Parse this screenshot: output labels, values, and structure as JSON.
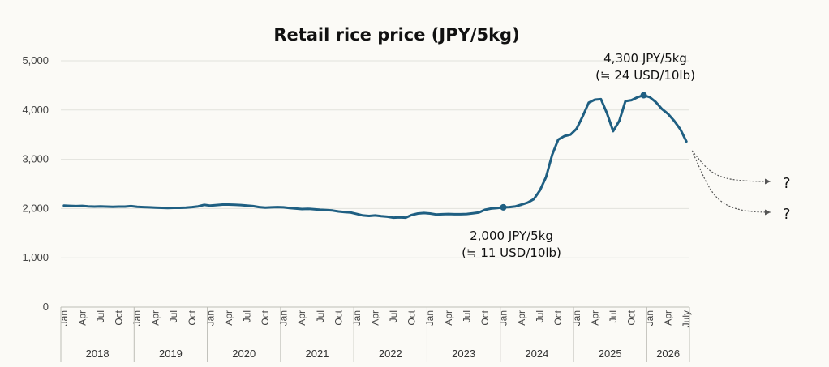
{
  "chart_data": {
    "type": "line",
    "title": "Retail rice price (JPY/5kg)",
    "xlabel": "",
    "ylabel": "",
    "ylim": [
      0,
      5000
    ],
    "y_ticks": [
      "0",
      "1,000",
      "2,000",
      "3,000",
      "4,000",
      "5,000"
    ],
    "x_start": "2018-01",
    "x_end": "2026-07",
    "month_labels": [
      "Jan",
      "Apr",
      "Jul",
      "Oct"
    ],
    "final_month_label": "July",
    "years": [
      "2018",
      "2019",
      "2020",
      "2021",
      "2022",
      "2023",
      "2024",
      "2025",
      "2026"
    ],
    "grid": true,
    "legend": "none",
    "line_color": "#1f5f82",
    "series": [
      {
        "points": [
          [
            "2018-01",
            2060
          ],
          [
            "2018-02",
            2055
          ],
          [
            "2018-03",
            2050
          ],
          [
            "2018-04",
            2055
          ],
          [
            "2018-05",
            2045
          ],
          [
            "2018-06",
            2040
          ],
          [
            "2018-07",
            2045
          ],
          [
            "2018-08",
            2040
          ],
          [
            "2018-09",
            2035
          ],
          [
            "2018-10",
            2040
          ],
          [
            "2018-11",
            2040
          ],
          [
            "2018-12",
            2050
          ],
          [
            "2019-01",
            2035
          ],
          [
            "2019-02",
            2030
          ],
          [
            "2019-03",
            2025
          ],
          [
            "2019-04",
            2020
          ],
          [
            "2019-05",
            2015
          ],
          [
            "2019-06",
            2010
          ],
          [
            "2019-07",
            2015
          ],
          [
            "2019-08",
            2015
          ],
          [
            "2019-09",
            2020
          ],
          [
            "2019-10",
            2030
          ],
          [
            "2019-11",
            2045
          ],
          [
            "2019-12",
            2075
          ],
          [
            "2020-01",
            2060
          ],
          [
            "2020-02",
            2070
          ],
          [
            "2020-03",
            2080
          ],
          [
            "2020-04",
            2080
          ],
          [
            "2020-05",
            2075
          ],
          [
            "2020-06",
            2070
          ],
          [
            "2020-07",
            2060
          ],
          [
            "2020-08",
            2050
          ],
          [
            "2020-09",
            2030
          ],
          [
            "2020-10",
            2020
          ],
          [
            "2020-11",
            2025
          ],
          [
            "2020-12",
            2030
          ],
          [
            "2021-01",
            2025
          ],
          [
            "2021-02",
            2010
          ],
          [
            "2021-03",
            2000
          ],
          [
            "2021-04",
            1990
          ],
          [
            "2021-05",
            1995
          ],
          [
            "2021-06",
            1985
          ],
          [
            "2021-07",
            1975
          ],
          [
            "2021-08",
            1970
          ],
          [
            "2021-09",
            1960
          ],
          [
            "2021-10",
            1940
          ],
          [
            "2021-11",
            1930
          ],
          [
            "2021-12",
            1920
          ],
          [
            "2022-01",
            1890
          ],
          [
            "2022-02",
            1860
          ],
          [
            "2022-03",
            1850
          ],
          [
            "2022-04",
            1860
          ],
          [
            "2022-05",
            1845
          ],
          [
            "2022-06",
            1835
          ],
          [
            "2022-07",
            1815
          ],
          [
            "2022-08",
            1820
          ],
          [
            "2022-09",
            1815
          ],
          [
            "2022-10",
            1870
          ],
          [
            "2022-11",
            1900
          ],
          [
            "2022-12",
            1910
          ],
          [
            "2023-01",
            1900
          ],
          [
            "2023-02",
            1880
          ],
          [
            "2023-03",
            1885
          ],
          [
            "2023-04",
            1890
          ],
          [
            "2023-05",
            1885
          ],
          [
            "2023-06",
            1885
          ],
          [
            "2023-07",
            1890
          ],
          [
            "2023-08",
            1905
          ],
          [
            "2023-09",
            1920
          ],
          [
            "2023-10",
            1975
          ],
          [
            "2023-11",
            2000
          ],
          [
            "2023-12",
            2010
          ],
          [
            "2024-01",
            2025
          ],
          [
            "2024-02",
            2030
          ],
          [
            "2024-03",
            2045
          ],
          [
            "2024-04",
            2080
          ],
          [
            "2024-05",
            2120
          ],
          [
            "2024-06",
            2190
          ],
          [
            "2024-07",
            2370
          ],
          [
            "2024-08",
            2640
          ],
          [
            "2024-09",
            3090
          ],
          [
            "2024-10",
            3400
          ],
          [
            "2024-11",
            3470
          ],
          [
            "2024-12",
            3500
          ],
          [
            "2025-01",
            3620
          ],
          [
            "2025-02",
            3870
          ],
          [
            "2025-03",
            4150
          ],
          [
            "2025-04",
            4210
          ],
          [
            "2025-05",
            4220
          ],
          [
            "2025-06",
            3930
          ],
          [
            "2025-07",
            3570
          ],
          [
            "2025-08",
            3780
          ],
          [
            "2025-09",
            4180
          ],
          [
            "2025-10",
            4200
          ],
          [
            "2025-11",
            4260
          ],
          [
            "2025-12",
            4300
          ],
          [
            "2026-01",
            4260
          ],
          [
            "2026-02",
            4160
          ],
          [
            "2026-03",
            4020
          ],
          [
            "2026-04",
            3920
          ],
          [
            "2026-05",
            3780
          ],
          [
            "2026-06",
            3610
          ],
          [
            "2026-07",
            3360
          ]
        ]
      }
    ],
    "annotations": [
      {
        "point": [
          "2024-01",
          2025
        ],
        "line1": "2,000 JPY/5kg",
        "line2": "(≒ 11 USD/10lb)"
      },
      {
        "point": [
          "2025-12",
          4300
        ],
        "line1": "4,300 JPY/5kg",
        "line2": "(≒ 24 USD/10lb)"
      }
    ],
    "projection_labels": [
      "?",
      "?"
    ]
  }
}
